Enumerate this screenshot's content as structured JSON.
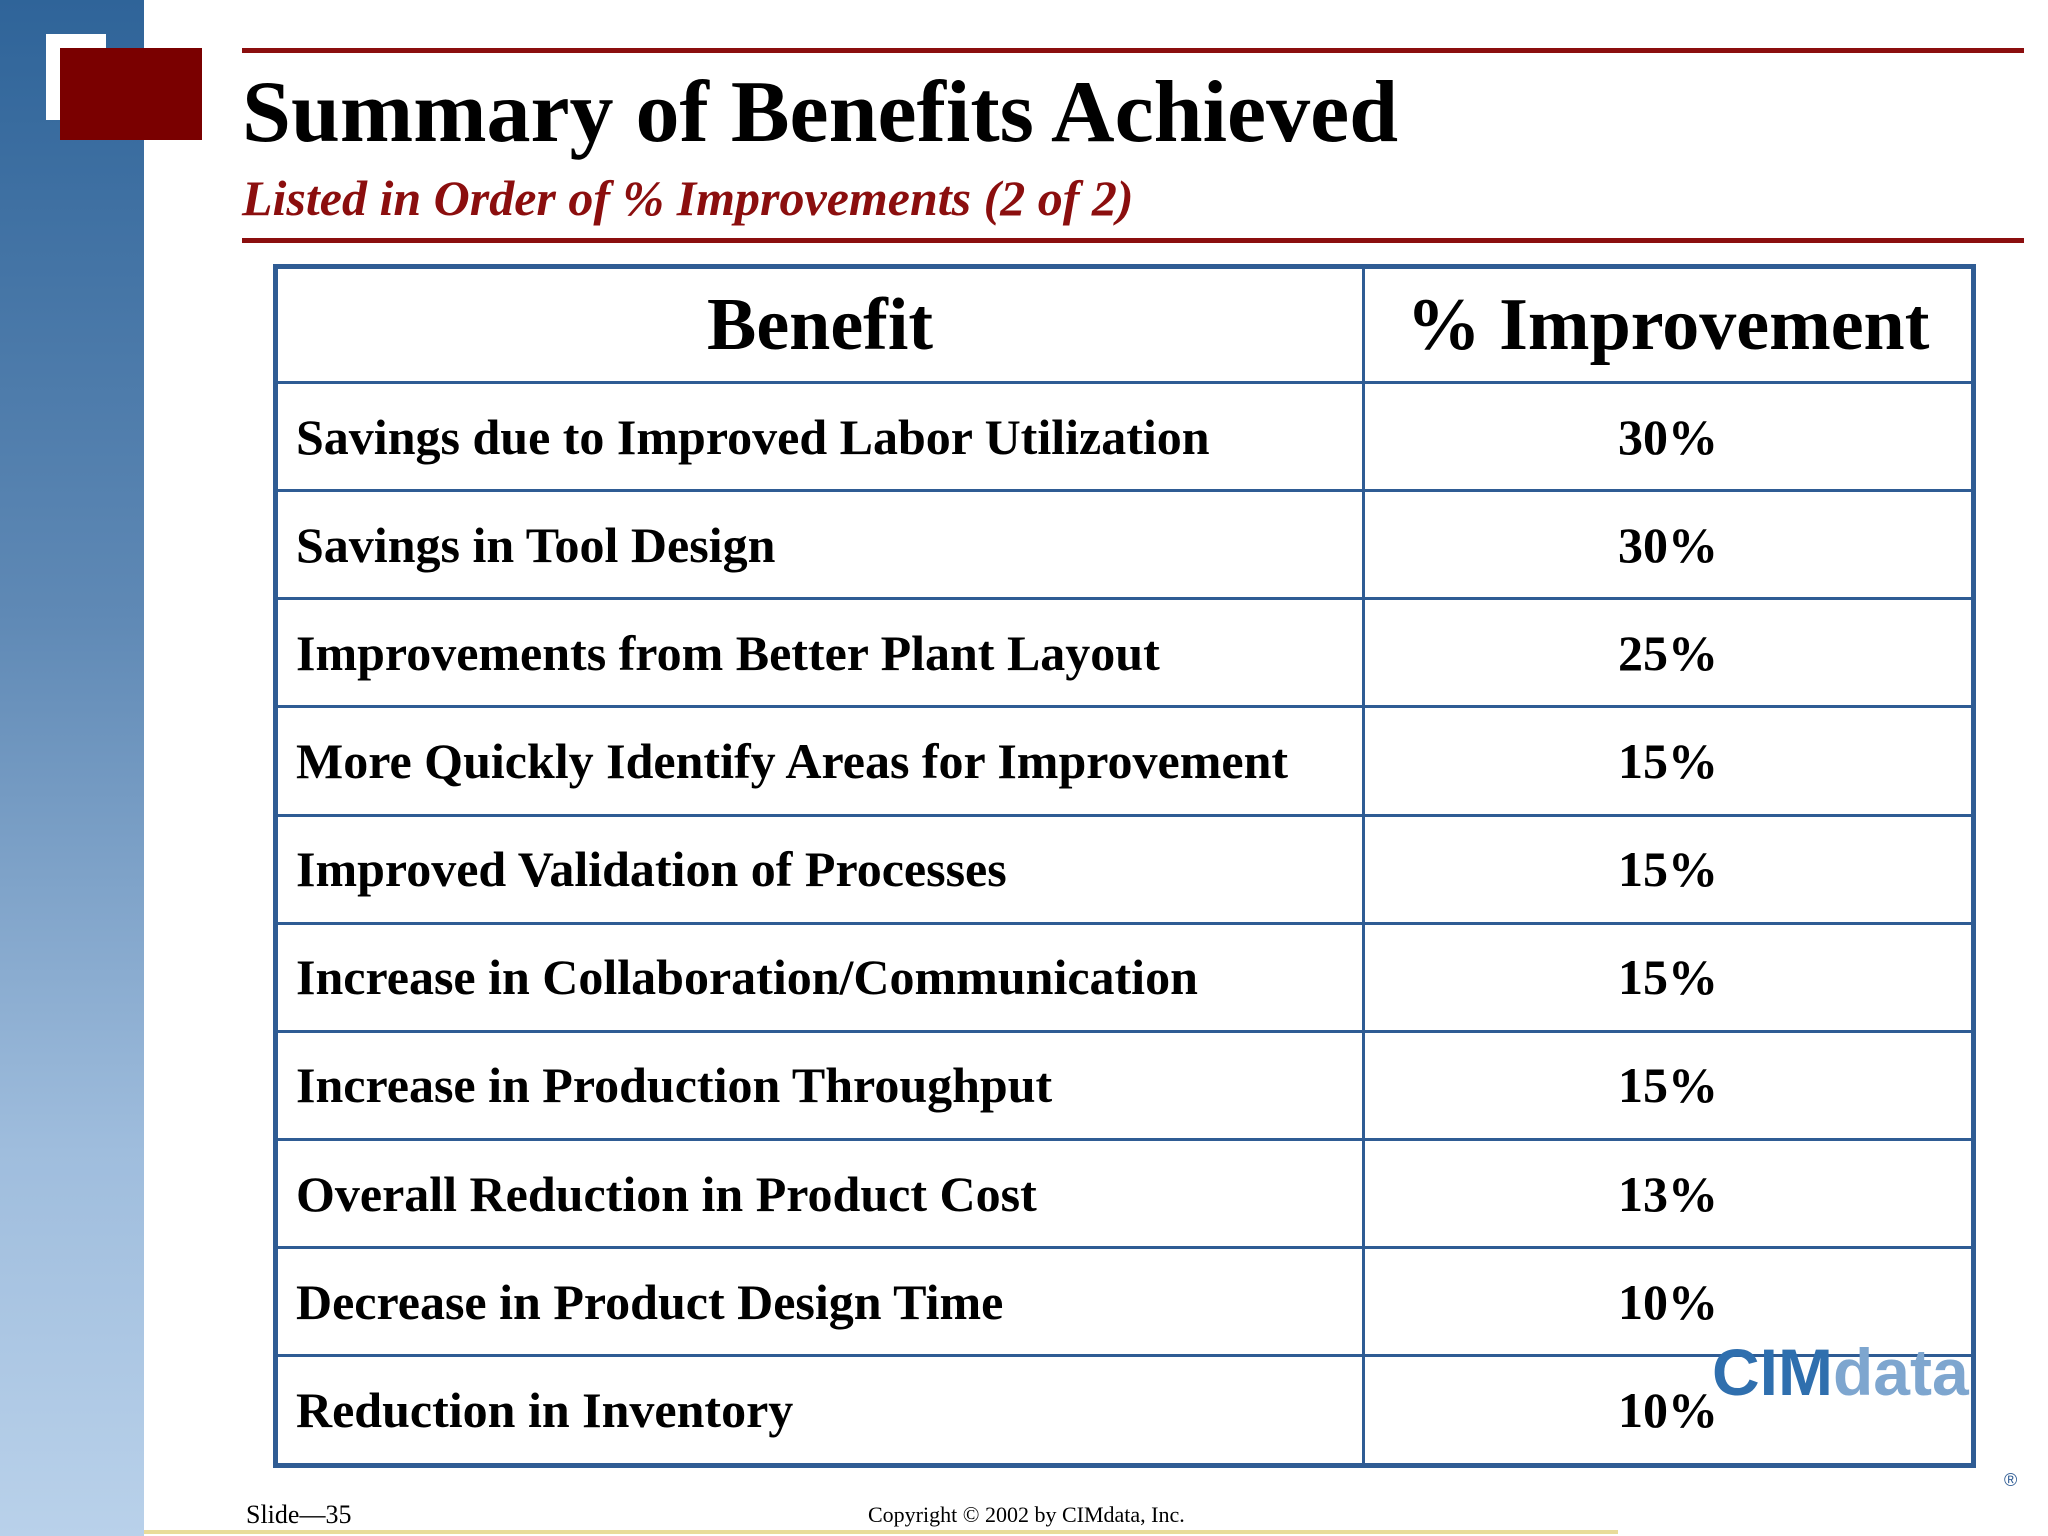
{
  "slide": {
    "title": "Summary of Benefits Achieved",
    "subtitle": "Listed in Order of % Improvements (2 of 2)"
  },
  "table": {
    "headers": [
      "Benefit",
      "% Improvement"
    ],
    "rows": [
      {
        "benefit": "Savings due to Improved Labor Utilization",
        "improvement": "30%"
      },
      {
        "benefit": "Savings in Tool Design",
        "improvement": "30%"
      },
      {
        "benefit": "Improvements from Better Plant Layout",
        "improvement": "25%"
      },
      {
        "benefit": "More Quickly Identify Areas for Improvement",
        "improvement": "15%"
      },
      {
        "benefit": "Improved Validation of Processes",
        "improvement": "15%"
      },
      {
        "benefit": "Increase in Collaboration/Communication",
        "improvement": "15%"
      },
      {
        "benefit": "Increase in Production Throughput",
        "improvement": "15%"
      },
      {
        "benefit": "Overall Reduction in Product Cost",
        "improvement": "13%"
      },
      {
        "benefit": "Decrease in Product Design Time",
        "improvement": "10%"
      },
      {
        "benefit": "Reduction in Inventory",
        "improvement": "10%"
      }
    ]
  },
  "logo": {
    "part1": "CIM",
    "part2": "data",
    "registered": "®"
  },
  "footer": {
    "slide_number": "Slide—35",
    "copyright": "Copyright © 2002 by CIMdata, Inc."
  },
  "colors": {
    "accent_red": "#8b0e0e",
    "table_border": "#2f5c94",
    "sidebar_blue": "#2f6499"
  }
}
